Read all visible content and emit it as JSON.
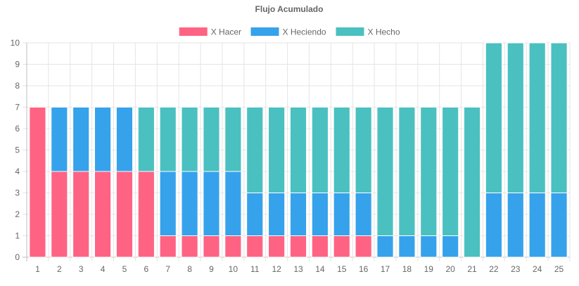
{
  "chart_data": {
    "type": "bar",
    "stacked": true,
    "title": "Flujo Acumulado",
    "xlabel": "",
    "ylabel": "",
    "ylim": [
      0,
      10
    ],
    "yticks": [
      "0",
      "1",
      "2",
      "3",
      "4",
      "5",
      "6",
      "7",
      "8",
      "9",
      "10"
    ],
    "grid": true,
    "legend_position": "top",
    "categories": [
      "1",
      "2",
      "3",
      "4",
      "5",
      "6",
      "7",
      "8",
      "9",
      "10",
      "11",
      "12",
      "13",
      "14",
      "15",
      "16",
      "17",
      "18",
      "19",
      "20",
      "21",
      "22",
      "23",
      "24",
      "25"
    ],
    "series": [
      {
        "name": "X Hacer",
        "color": "#ff6384",
        "values": [
          7,
          4,
          4,
          4,
          4,
          4,
          1,
          1,
          1,
          1,
          1,
          1,
          1,
          1,
          1,
          1,
          0,
          0,
          0,
          0,
          0,
          0,
          0,
          0,
          0
        ]
      },
      {
        "name": "X Heciendo",
        "color": "#36a2eb",
        "values": [
          0,
          3,
          3,
          3,
          3,
          0,
          3,
          3,
          3,
          3,
          2,
          2,
          2,
          2,
          2,
          2,
          1,
          1,
          1,
          1,
          0,
          3,
          3,
          3,
          3
        ]
      },
      {
        "name": "X Hecho",
        "color": "#4bc0c0",
        "values": [
          0,
          0,
          0,
          0,
          0,
          3,
          3,
          3,
          3,
          3,
          4,
          4,
          4,
          4,
          4,
          4,
          6,
          6,
          6,
          6,
          7,
          7,
          7,
          7,
          7
        ]
      }
    ]
  }
}
